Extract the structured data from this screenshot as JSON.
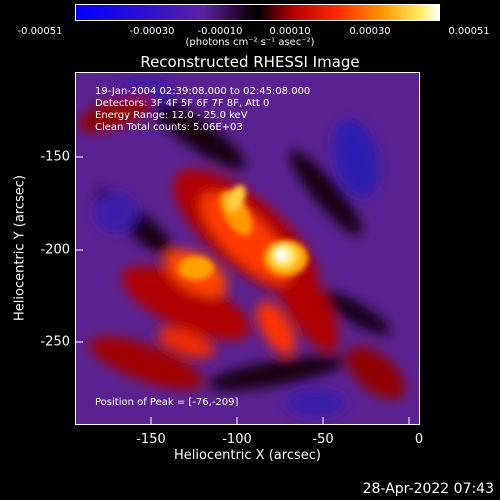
{
  "colorbar": {
    "ticks": [
      "-0.00051",
      "-0.00030",
      "-0.00010",
      "0.00010",
      "0.00030",
      "0.00051"
    ],
    "units_text": "(photons cm⁻² s⁻¹ asec⁻²)"
  },
  "title": "Reconstructed RHESSI Image",
  "annotations": {
    "time_range": "19-Jan-2004 02:39:08.000 to 02:45:08.000",
    "detectors": "Detectors: 3F 4F 5F 6F 7F 8F, Att 0",
    "energy_range": "Energy Range: 12.0 - 25.0 keV",
    "clean_counts": "Clean     Total counts: 5.06E+03",
    "peak_position": "Position of Peak = [-76,-209]"
  },
  "axes": {
    "xlabel": "Heliocentric X (arcsec)",
    "ylabel": "Heliocentric Y (arcsec)",
    "xticks": [
      "-150",
      "-100",
      "-50",
      "0"
    ],
    "yticks": [
      "-150",
      "-200",
      "-250"
    ]
  },
  "timestamp": "28-Apr-2022 07:43"
}
